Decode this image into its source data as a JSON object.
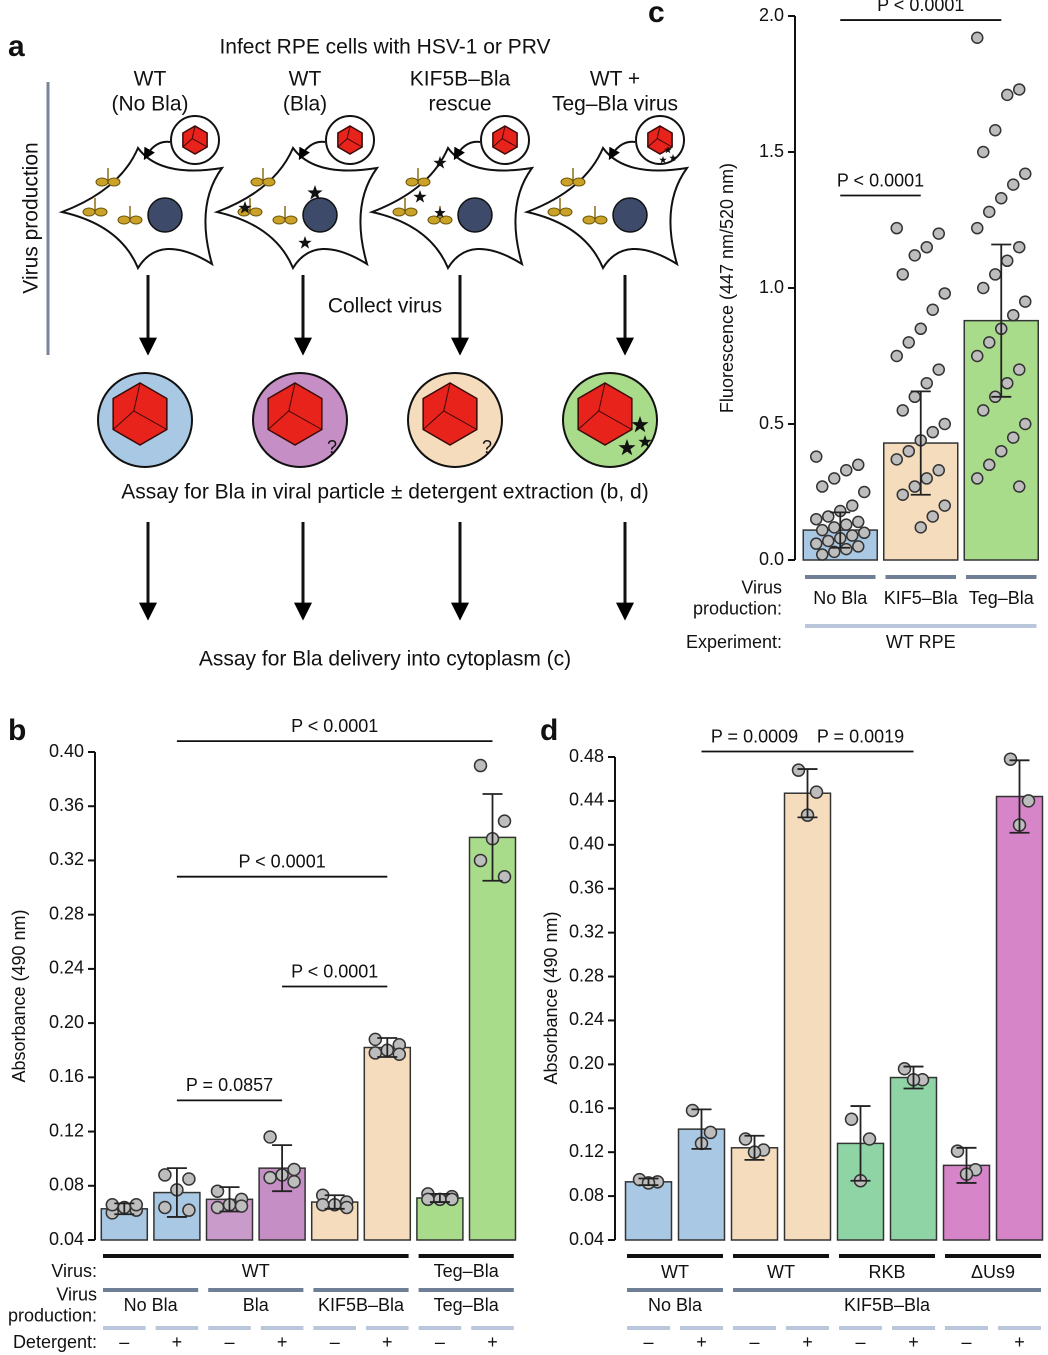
{
  "diagram": {
    "panel": "a",
    "title": "Infect RPE cells with HSV-1 or PRV",
    "side_label": "Virus production",
    "columns": [
      [
        "WT",
        "(No Bla)"
      ],
      [
        "WT",
        "(Bla)"
      ],
      [
        "KIF5B–Bla",
        "rescue"
      ],
      [
        "WT +",
        "Teg–Bla virus"
      ]
    ],
    "step": "Collect virus",
    "marks": [
      "?",
      "?"
    ],
    "assay_particle": "Assay for Bla in viral particle ± detergent extraction (b, d)",
    "assay_delivery": "Assay for Bla delivery into cytoplasm (c)"
  },
  "chart_data": [
    {
      "type": "bar",
      "panel": "b",
      "ylabel": "Absorbance (490 nm)",
      "ylim": [
        0.04,
        0.4
      ],
      "yticks": [
        0.04,
        0.08,
        0.12,
        0.16,
        {
          "value": 0.2,
          "label": "0.20"
        },
        0.24,
        0.28,
        0.32,
        0.36,
        {
          "value": 0.4,
          "label": "0.40"
        }
      ],
      "values": [
        0.063,
        0.075,
        0.07,
        0.093,
        0.068,
        0.182,
        0.071,
        0.337
      ],
      "errors": [
        0.004,
        0.018,
        0.009,
        0.017,
        0.005,
        0.007,
        0.003,
        0.032
      ],
      "points": [
        [
          0.06,
          0.062,
          0.064,
          0.066,
          0.066
        ],
        [
          0.088,
          0.085,
          0.077,
          0.064,
          0.062
        ],
        [
          0.076,
          0.07,
          0.066,
          0.064,
          0.065
        ],
        [
          0.116,
          0.092,
          0.088,
          0.086,
          0.083
        ],
        [
          0.073,
          0.068,
          0.066,
          0.066,
          0.064
        ],
        [
          0.188,
          0.184,
          0.18,
          0.178,
          0.177
        ],
        [
          0.074,
          0.072,
          0.07,
          0.07,
          0.07
        ],
        [
          0.39,
          0.349,
          0.336,
          0.32,
          0.308
        ]
      ],
      "colors": [
        "#a9c8e3",
        "#a9c8e3",
        "#c99bcb",
        "#c58fc5",
        "#f5dcbd",
        "#f5dcbd",
        "#a9dc8a",
        "#a9dc8a"
      ],
      "annotations": [
        "P < 0.0001",
        "P < 0.0001",
        "P < 0.0001",
        "P = 0.0857"
      ],
      "groups": [
        {
          "label": [
            "Virus:"
          ],
          "names": [
            "WT",
            "Teg–Bla"
          ]
        },
        {
          "label": [
            "Virus",
            "production:"
          ],
          "names": [
            "No Bla",
            "Bla",
            "KIF5B–Bla",
            "Teg–Bla"
          ]
        },
        {
          "label": [
            "Detergent:"
          ],
          "names": [
            "–",
            "+",
            "–",
            "+",
            "–",
            "+",
            "–",
            "+"
          ]
        }
      ]
    },
    {
      "type": "bar",
      "panel": "c",
      "ylabel": "Fluorescence (447 nm/520 nm)",
      "ylim": [
        0,
        2
      ],
      "yticks": [
        {
          "value": 0,
          "label": "0.0"
        },
        0.5,
        {
          "value": 1,
          "label": "1.0"
        },
        1.5,
        {
          "value": 2,
          "label": "2.0"
        }
      ],
      "values": [
        0.11,
        0.43,
        0.88
      ],
      "errors": [
        0.065,
        0.19,
        0.28
      ],
      "points": [
        [
          0.38,
          0.35,
          0.33,
          0.3,
          0.27,
          0.25,
          0.2,
          0.18,
          0.16,
          0.15,
          0.14,
          0.13,
          0.12,
          0.11,
          0.1,
          0.09,
          0.08,
          0.07,
          0.06,
          0.05,
          0.04,
          0.03,
          0.02
        ],
        [
          1.22,
          1.2,
          1.15,
          1.12,
          1.05,
          0.98,
          0.92,
          0.85,
          0.8,
          0.75,
          0.7,
          0.65,
          0.6,
          0.55,
          0.5,
          0.47,
          0.44,
          0.4,
          0.37,
          0.33,
          0.3,
          0.27,
          0.24,
          0.2,
          0.16,
          0.12
        ],
        [
          1.92,
          1.73,
          1.71,
          1.58,
          1.5,
          1.42,
          1.38,
          1.33,
          1.28,
          1.22,
          1.15,
          1.1,
          1.05,
          1.0,
          0.95,
          0.9,
          0.85,
          0.8,
          0.75,
          0.7,
          0.65,
          0.6,
          0.55,
          0.5,
          0.45,
          0.4,
          0.35,
          0.3,
          0.27
        ]
      ],
      "colors": [
        "#a9c8e3",
        "#f5dcbd",
        "#a9dc8a"
      ],
      "annotations": [
        "P < 0.0001",
        "P < 0.0001"
      ],
      "groups": [
        {
          "label": [
            "Virus",
            "production:"
          ],
          "names": [
            "No Bla",
            "KIF5–Bla",
            "Teg–Bla"
          ]
        },
        {
          "label": [
            "Experiment:"
          ],
          "names": [
            "WT RPE"
          ]
        }
      ]
    },
    {
      "type": "bar",
      "panel": "d",
      "ylabel": "Absorbance (490 nm)",
      "ylim": [
        0.04,
        0.48
      ],
      "yticks": [
        0.04,
        0.08,
        0.12,
        0.16,
        {
          "value": 0.2,
          "label": "0.20"
        },
        0.24,
        0.28,
        0.32,
        0.36,
        {
          "value": 0.4,
          "label": "0.40"
        },
        0.44,
        0.48
      ],
      "values": [
        0.093,
        0.141,
        0.124,
        0.447,
        0.128,
        0.188,
        0.108,
        0.444
      ],
      "errors": [
        0.003,
        0.018,
        0.011,
        0.022,
        0.034,
        0.01,
        0.016,
        0.033
      ],
      "points": [
        [
          0.095,
          0.093,
          0.092
        ],
        [
          0.158,
          0.138,
          0.128
        ],
        [
          0.132,
          0.122,
          0.12
        ],
        [
          0.468,
          0.448,
          0.427
        ],
        [
          0.15,
          0.132,
          0.094
        ],
        [
          0.196,
          0.186,
          0.186
        ],
        [
          0.121,
          0.104,
          0.1
        ],
        [
          0.478,
          0.44,
          0.418
        ]
      ],
      "colors": [
        "#a9c8e3",
        "#a9c8e3",
        "#f5dcbd",
        "#f5dcbd",
        "#8fd4a5",
        "#8fd4a5",
        "#d685c9",
        "#d685c9"
      ],
      "annotations": [
        "P = 0.0009",
        "P = 0.0019"
      ],
      "groups": [
        {
          "names": [
            "WT",
            "WT",
            "RKB",
            "ΔUs9"
          ]
        },
        {
          "names": [
            "No Bla",
            "KIF5B–Bla"
          ]
        },
        {
          "names": [
            "–",
            "+",
            "–",
            "+",
            "–",
            "+",
            "–",
            "+"
          ]
        }
      ]
    }
  ]
}
